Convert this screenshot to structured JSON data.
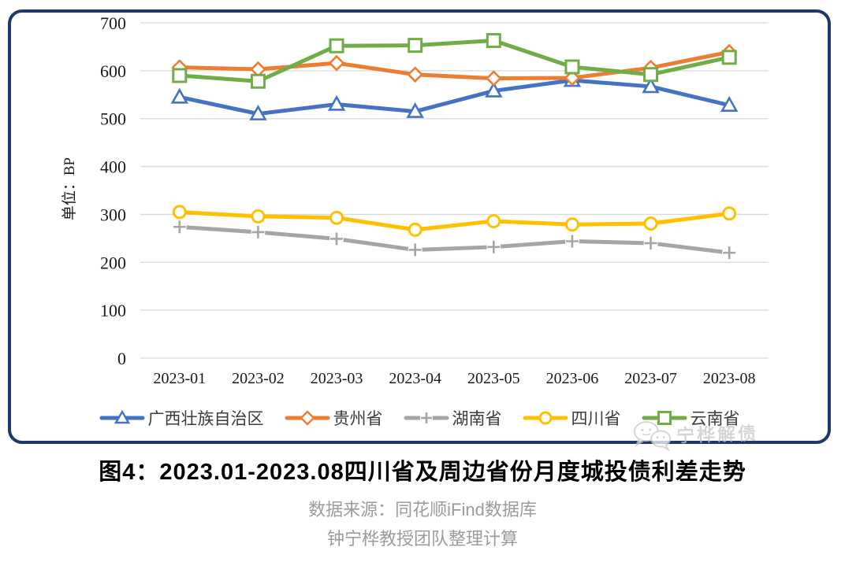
{
  "page": {
    "title": "图4：2023.01-2023.08四川省及周边省份月度城投债利差走势",
    "source_line1": "数据来源：同花顺iFind数据库",
    "source_line2": "钟宁桦教授团队整理计算",
    "watermark": "宁桦解债"
  },
  "colors": {
    "card_border": "#1F3864",
    "gridline": "#D9D9D9",
    "axis_text": "#1a1a1a",
    "source_text": "#9b9b9b",
    "watermark_text": "#c9c9c9"
  },
  "chart_data": {
    "type": "line",
    "categories": [
      "2023-01",
      "2023-02",
      "2023-03",
      "2023-04",
      "2023-05",
      "2023-06",
      "2023-07",
      "2023-08"
    ],
    "series": [
      {
        "name": "广西壮族自治区",
        "color": "#4472C4",
        "marker": "triangle",
        "values": [
          545,
          510,
          530,
          515,
          558,
          580,
          567,
          528
        ]
      },
      {
        "name": "贵州省",
        "color": "#ED7D31",
        "marker": "diamond",
        "values": [
          607,
          603,
          616,
          592,
          584,
          585,
          606,
          639
        ]
      },
      {
        "name": "湖南省",
        "color": "#A5A5A5",
        "marker": "plus",
        "values": [
          274,
          263,
          249,
          226,
          232,
          244,
          240,
          220
        ]
      },
      {
        "name": "四川省",
        "color": "#FFC000",
        "marker": "circle",
        "values": [
          305,
          296,
          293,
          268,
          286,
          279,
          281,
          302
        ]
      },
      {
        "name": "云南省",
        "color": "#70AD47",
        "marker": "square",
        "values": [
          590,
          578,
          652,
          653,
          663,
          608,
          592,
          628
        ]
      }
    ],
    "title": "",
    "xlabel": "",
    "ylabel": "单位：BP",
    "ylim": [
      0,
      700
    ],
    "ytick_step": 100,
    "grid": true,
    "legend_position": "bottom"
  }
}
